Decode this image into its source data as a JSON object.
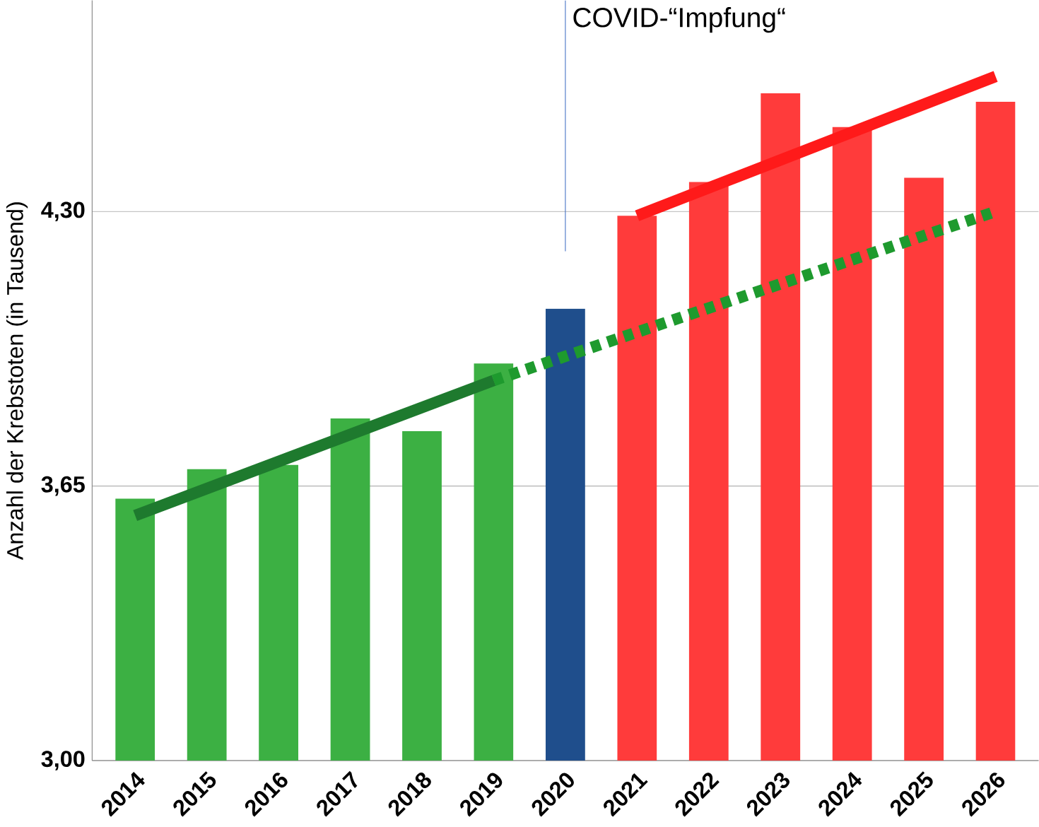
{
  "chart_data": {
    "type": "bar",
    "ylabel": "Anzahl der Krebstoten (in Tausend)",
    "categories": [
      "2014",
      "2015",
      "2016",
      "2017",
      "2018",
      "2019",
      "2020",
      "2021",
      "2022",
      "2023",
      "2024",
      "2025",
      "2026"
    ],
    "ylim": [
      3.0,
      4.8
    ],
    "yticks": [
      {
        "value": 3.0,
        "label": "3,00"
      },
      {
        "value": 3.65,
        "label": "3,65"
      },
      {
        "value": 4.3,
        "label": "4,30"
      }
    ],
    "grid": "y",
    "annotations": [
      "COVID-“Impfung“"
    ],
    "series": [
      {
        "values": [
          3.62,
          3.69,
          3.7,
          3.81,
          3.78,
          3.94,
          4.07,
          4.29,
          4.37,
          4.58,
          4.5,
          4.38,
          4.56
        ],
        "colors": [
          "#3cb043",
          "#3cb043",
          "#3cb043",
          "#3cb043",
          "#3cb043",
          "#3cb043",
          "#1f4e8c",
          "#ff3b3b",
          "#ff3b3b",
          "#ff3b3b",
          "#ff3b3b",
          "#ff3b3b",
          "#ff3b3b"
        ]
      },
      {
        "type": "line",
        "values": [
          3.58,
          null,
          null,
          null,
          null,
          3.9,
          null,
          null,
          null,
          null,
          null,
          null,
          null
        ],
        "color": "#1e7a2e",
        "line_style": "solid"
      },
      {
        "type": "line",
        "values": [
          null,
          null,
          null,
          null,
          null,
          3.9,
          null,
          null,
          null,
          null,
          null,
          null,
          4.3
        ],
        "color": "#1e9a2e",
        "line_style": "dotted"
      },
      {
        "type": "line",
        "values": [
          null,
          null,
          null,
          null,
          null,
          null,
          null,
          4.29,
          null,
          null,
          null,
          null,
          4.62
        ],
        "color": "#ff1a1a",
        "line_style": "solid"
      }
    ]
  }
}
